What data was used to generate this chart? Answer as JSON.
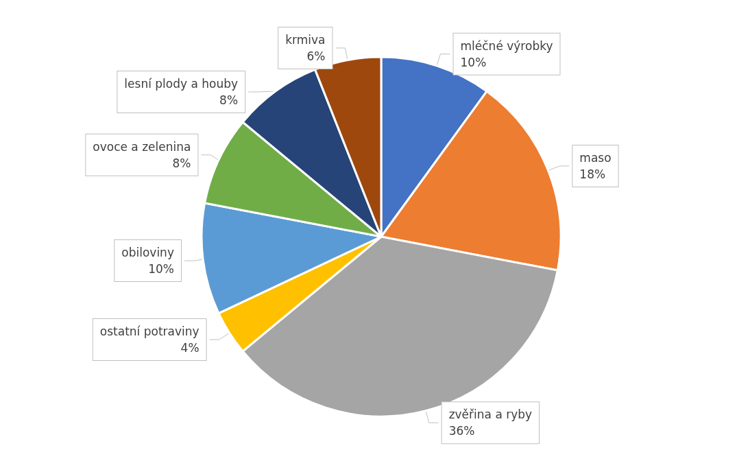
{
  "chart_data": {
    "type": "pie",
    "categories": [
      "mléčné výrobky",
      "maso",
      "zvěřina a ryby",
      "ostatní potraviny",
      "obiloviny",
      "ovoce a zelenina",
      "lesní plody a houby",
      "krmiva"
    ],
    "values": [
      10,
      18,
      36,
      4,
      10,
      8,
      8,
      6
    ],
    "value_labels": [
      "10%",
      "18%",
      "36%",
      "4%",
      "10%",
      "8%",
      "8%",
      "6%"
    ],
    "colors": [
      "#4472c4",
      "#ed7d31",
      "#a5a5a5",
      "#ffc000",
      "#5b9bd5",
      "#70ad47",
      "#264478",
      "#9e480e"
    ],
    "legend": false
  }
}
